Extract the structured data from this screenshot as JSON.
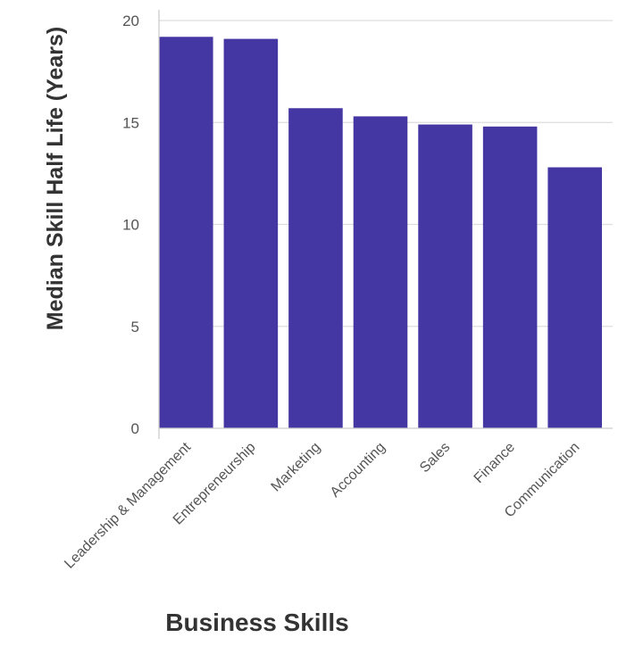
{
  "chart_data": {
    "type": "bar",
    "categories": [
      "Leadership & Management",
      "Entrepreneurship",
      "Marketing",
      "Accounting",
      "Sales",
      "Finance",
      "Communication"
    ],
    "values": [
      19.2,
      19.1,
      15.7,
      15.3,
      14.9,
      14.8,
      12.8
    ],
    "title": "",
    "xlabel": "Business Skills",
    "ylabel": "Median Skill Half Life (Years)",
    "ylim": [
      0,
      20
    ],
    "yticks": [
      0,
      5,
      10,
      15,
      20
    ],
    "grid": true,
    "legend": "none",
    "bar_color": "#4436a3"
  }
}
